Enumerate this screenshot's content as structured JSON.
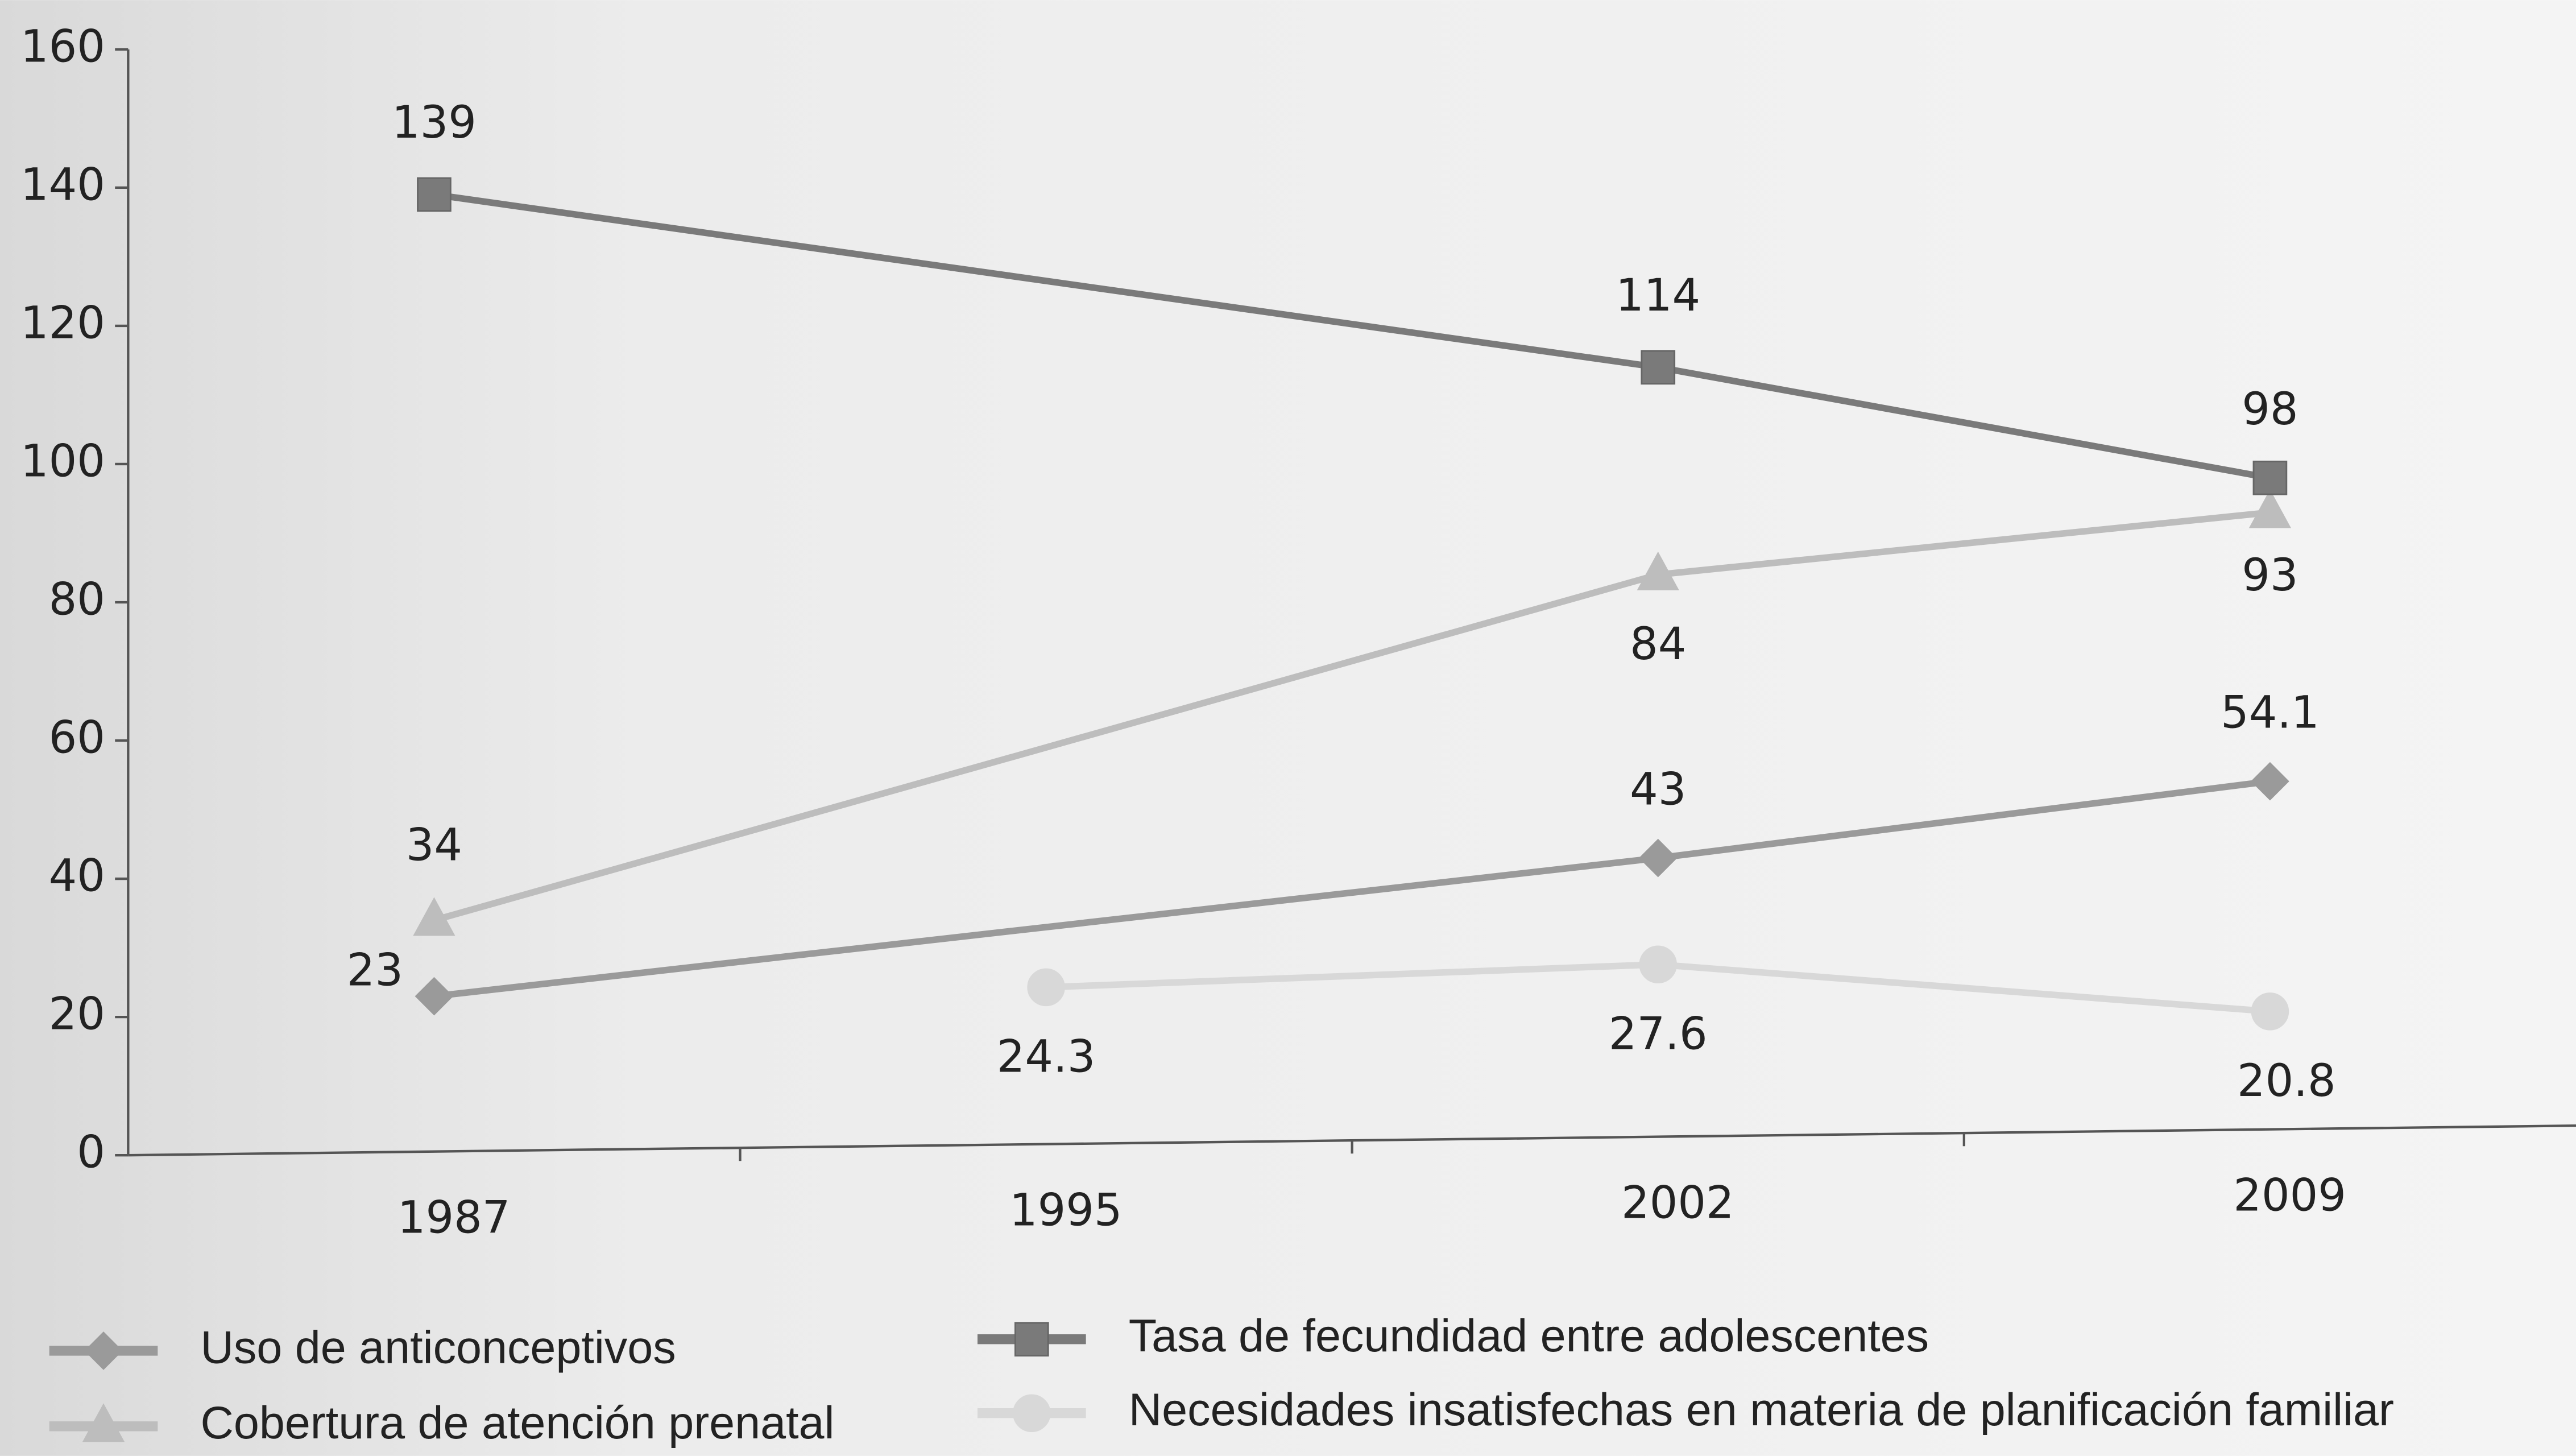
{
  "chart_data": {
    "type": "line",
    "categories": [
      "1987",
      "1995",
      "2002",
      "2009"
    ],
    "ylim": [
      0,
      160
    ],
    "yticks": [
      0,
      20,
      40,
      60,
      80,
      100,
      120,
      140,
      160
    ],
    "series": [
      {
        "name": "Uso de anticonceptivos",
        "color": "#9a9a9a",
        "marker": "diamond",
        "x": [
          "1987",
          "2002",
          "2009"
        ],
        "values": [
          23,
          43,
          54.1
        ]
      },
      {
        "name": "Cobertura de atención prenatal",
        "color": "#bdbdbd",
        "marker": "triangle",
        "x": [
          "1987",
          "2002",
          "2009"
        ],
        "values": [
          34,
          84,
          93
        ]
      },
      {
        "name": "Tasa de fecundidad entre adolescentes",
        "color": "#7a7a7a",
        "marker": "square",
        "x": [
          "1987",
          "2002",
          "2009"
        ],
        "values": [
          139,
          114,
          98
        ]
      },
      {
        "name": "Necesidades insatisfechas en materia de planificación familiar",
        "color": "#d8d8d8",
        "marker": "circle",
        "x": [
          "1995",
          "2002",
          "2009"
        ],
        "values": [
          24.3,
          27.6,
          20.8
        ]
      }
    ]
  }
}
